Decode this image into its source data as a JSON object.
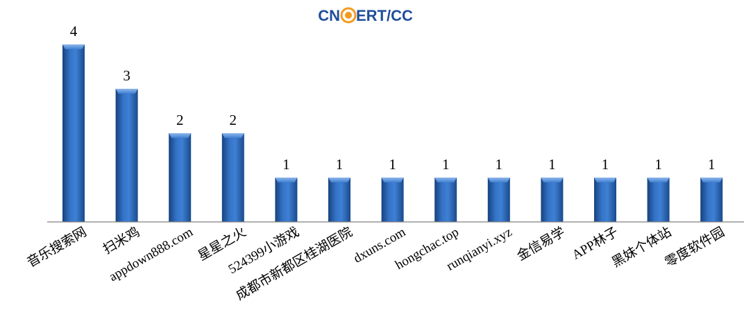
{
  "logo": {
    "left": "CN",
    "right": "ERT/CC",
    "primary_color": "#1f4e9a",
    "accent_color": "#f39a1e"
  },
  "chart_data": {
    "type": "bar",
    "title": "",
    "xlabel": "",
    "ylabel": "",
    "categories": [
      "音乐搜索网",
      "扫米鸡",
      "appdown888.com",
      "星星之火",
      "524399小游戏",
      "成都市新都区桂湖医院",
      "dxuns.com",
      "hongchac.top",
      "runqianyi.xyz",
      "金信易学",
      "APP林子",
      "黑妹个体站",
      "零度软件园"
    ],
    "values": [
      4,
      3,
      2,
      2,
      1,
      1,
      1,
      1,
      1,
      1,
      1,
      1,
      1
    ],
    "ylim": [
      0,
      4
    ],
    "grid": false,
    "legend": "none",
    "bar_color": "#2e6dbf",
    "bar_color_dark": "#17427e",
    "bar_color_light": "#5d92da"
  }
}
